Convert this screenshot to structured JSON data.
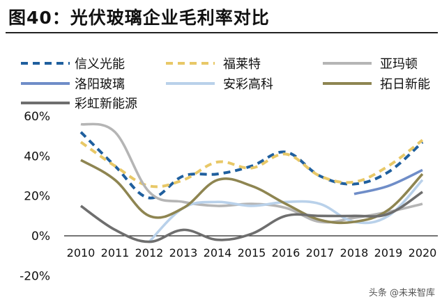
{
  "figure": {
    "title": "图40：光伏玻璃企业毛利率对比",
    "watermark": "头条 @未来智库"
  },
  "chart_data": {
    "type": "line",
    "title": "",
    "xlabel": "",
    "ylabel": "",
    "x": [
      "2010",
      "2011",
      "2012",
      "2013",
      "2014",
      "2015",
      "2016",
      "2017",
      "2018",
      "2019",
      "2020"
    ],
    "ylim": [
      -20,
      60
    ],
    "yticks": [
      -20,
      0,
      20,
      40,
      60
    ],
    "ytick_labels": [
      "-20%",
      "0%",
      "20%",
      "40%",
      "60%"
    ],
    "legend_position": "top",
    "grid": false,
    "series": [
      {
        "name": "信义光能",
        "color": "#1f5f9e",
        "dash": "dashed",
        "values": [
          52,
          35,
          19,
          30,
          31,
          35,
          42,
          30,
          26,
          32,
          47
        ]
      },
      {
        "name": "福莱特",
        "color": "#e8c867",
        "dash": "dashed",
        "values": [
          47,
          35,
          25,
          28,
          37,
          34,
          41,
          30,
          27,
          35,
          48
        ]
      },
      {
        "name": "亚玛顿",
        "color": "#b5b5b5",
        "dash": "solid",
        "values": [
          56,
          52,
          22,
          17,
          15,
          16,
          14,
          7,
          9,
          12,
          16
        ]
      },
      {
        "name": "洛阳玻璃",
        "color": "#6f8dc8",
        "dash": "solid",
        "values": [
          null,
          null,
          null,
          null,
          null,
          null,
          null,
          null,
          21,
          25,
          33
        ]
      },
      {
        "name": "安彩高科",
        "color": "#b9d1ea",
        "dash": "solid",
        "values": [
          null,
          null,
          -3,
          14,
          17,
          15,
          17,
          16,
          7,
          10,
          28
        ]
      },
      {
        "name": "拓日新能",
        "color": "#8e8551",
        "dash": "solid",
        "values": [
          38,
          28,
          10,
          14,
          28,
          25,
          16,
          8,
          7,
          13,
          31
        ]
      },
      {
        "name": "彩虹新能源",
        "color": "#6e6e6e",
        "dash": "solid",
        "values": [
          15,
          3,
          -3,
          3,
          -2,
          1,
          10,
          10,
          10,
          11,
          22
        ]
      }
    ]
  }
}
